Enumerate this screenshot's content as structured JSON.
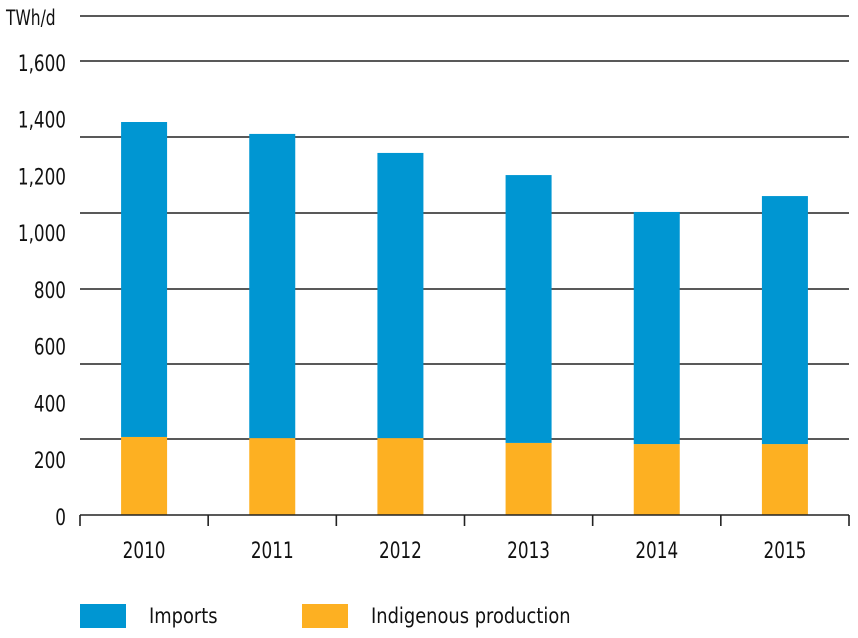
{
  "chart_data": {
    "type": "bar",
    "stacked": true,
    "title": "",
    "ylabel": "TWh/d",
    "xlabel": "",
    "ylim": [
      0,
      1600
    ],
    "yticks": [
      0,
      200,
      400,
      600,
      800,
      1000,
      1200,
      1400,
      1600
    ],
    "ytick_labels": [
      "0",
      "200",
      "400",
      "600",
      "800",
      "1,000",
      "1,200",
      "1,400",
      "1,600"
    ],
    "categories": [
      "2010",
      "2011",
      "2012",
      "2013",
      "2014",
      "2015"
    ],
    "series": [
      {
        "name": "Indigenous production",
        "color": "#FDB022",
        "values": [
          275,
          271,
          271,
          254,
          250,
          250
        ]
      },
      {
        "name": "Imports",
        "color": "#0096D2",
        "values": [
          1110,
          1072,
          1005,
          944,
          818,
          874
        ]
      }
    ],
    "grid": true,
    "legend_position": "bottom-left"
  },
  "legend": {
    "items": [
      {
        "label": "Imports",
        "color": "#0096D2"
      },
      {
        "label": "Indigenous production",
        "color": "#FDB022"
      }
    ]
  }
}
